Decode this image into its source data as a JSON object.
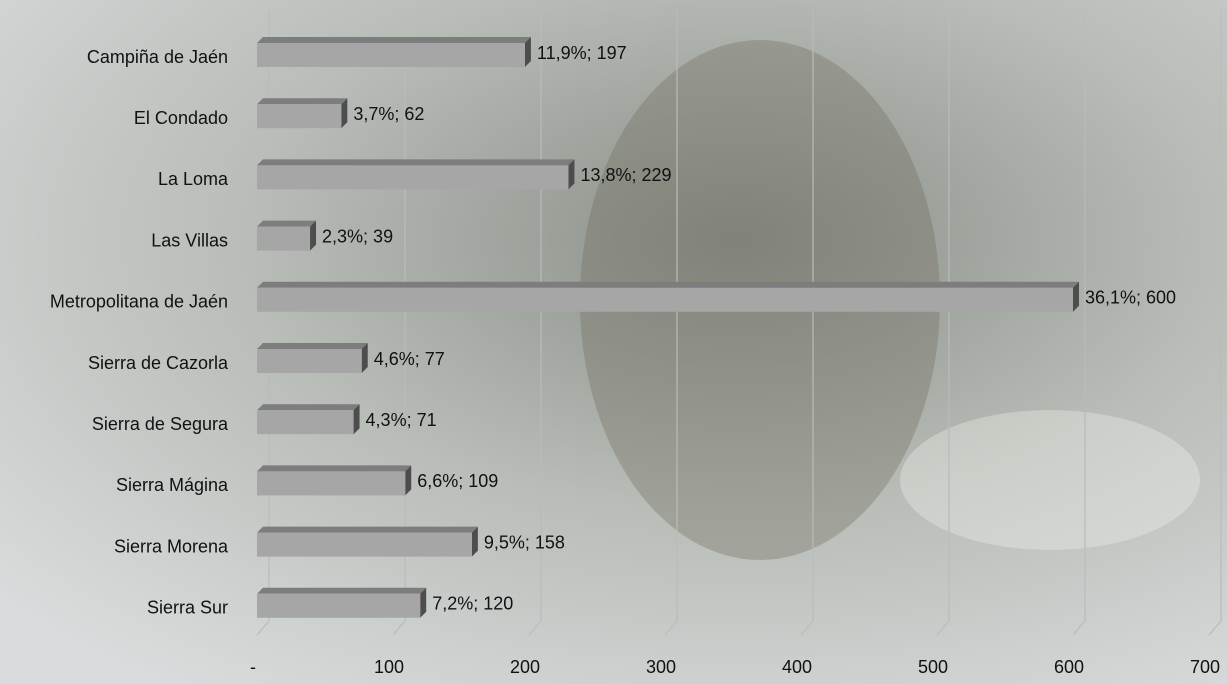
{
  "chart_data": {
    "type": "bar",
    "orientation": "horizontal",
    "categories": [
      "Campiña de Jaén",
      "El Condado",
      "La Loma",
      "Las Villas",
      "Metropolitana de Jaén",
      "Sierra de Cazorla",
      "Sierra de Segura",
      "Sierra Mágina",
      "Sierra Morena",
      "Sierra Sur"
    ],
    "values": [
      197,
      62,
      229,
      39,
      600,
      77,
      71,
      109,
      158,
      120
    ],
    "value_labels": [
      "11,9%; 197",
      "3,7%; 62",
      "13,8%; 229",
      "2,3%; 39",
      "36,1%; 600",
      "4,6%; 77",
      "4,3%; 71",
      "6,6%; 109",
      "9,5%; 158",
      "7,2%; 120"
    ],
    "color": "#a6a6a6",
    "xlim": [
      0,
      700
    ],
    "xticks": [
      {
        "value": 0,
        "label": "-"
      },
      100,
      200,
      300,
      400,
      500,
      600,
      700
    ],
    "grid": true
  }
}
